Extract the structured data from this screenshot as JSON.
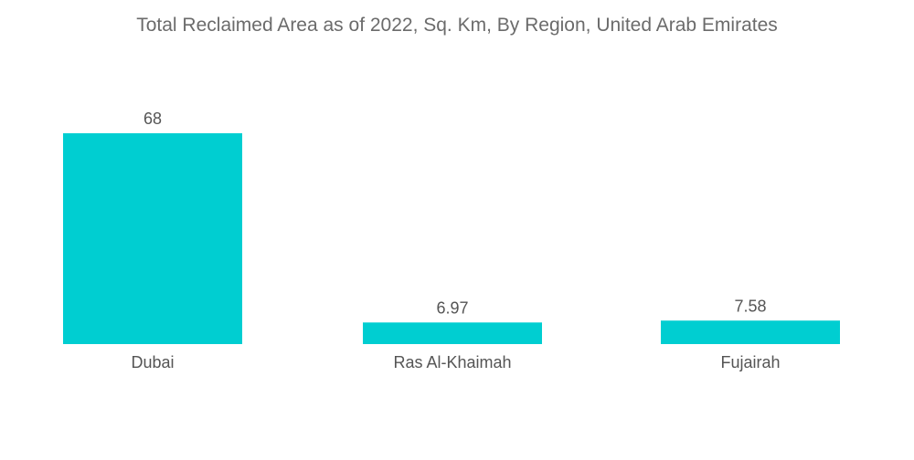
{
  "chart_data": {
    "type": "bar",
    "title": "Total Reclaimed Area as of 2022, Sq. Km, By Region, United Arab Emirates",
    "xlabel": "",
    "ylabel": "",
    "categories": [
      "Dubai",
      "Ras Al-Khaimah",
      "Fujairah"
    ],
    "values": [
      68,
      6.97,
      7.58
    ],
    "value_labels": [
      "68",
      "6.97",
      "7.58"
    ],
    "ylim": [
      0,
      68
    ],
    "grid": false,
    "legend": "none",
    "colors": {
      "bar": "#00CED1",
      "text": "#555555",
      "title": "#6b6b6b"
    }
  }
}
